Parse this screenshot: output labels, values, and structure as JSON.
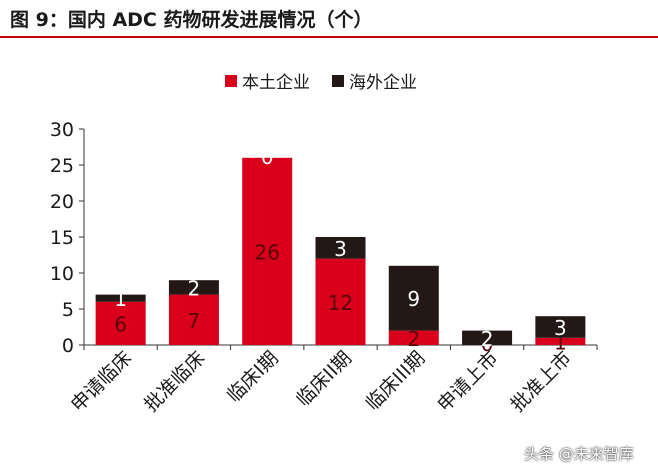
{
  "title": "图 9：国内 ADC 药物研发进展情况（个）",
  "colors": {
    "domestic": "#d9001b",
    "overseas": "#231815",
    "rule": "#c00000"
  },
  "chart_data": {
    "type": "bar",
    "stacked": true,
    "categories": [
      "申请临床",
      "批准临床",
      "临床I期",
      "临床II期",
      "临床III期",
      "申请上市",
      "批准上市"
    ],
    "series": [
      {
        "name": "本土企业",
        "values": [
          6,
          7,
          26,
          12,
          2,
          0,
          1
        ]
      },
      {
        "name": "海外企业",
        "values": [
          1,
          2,
          0,
          3,
          9,
          2,
          3
        ]
      }
    ],
    "yticks": [
      0,
      5,
      10,
      15,
      20,
      25,
      30
    ],
    "ylim": [
      0,
      30
    ],
    "legend_position": "top",
    "grid": false
  },
  "watermark": "头条 @未来智库"
}
